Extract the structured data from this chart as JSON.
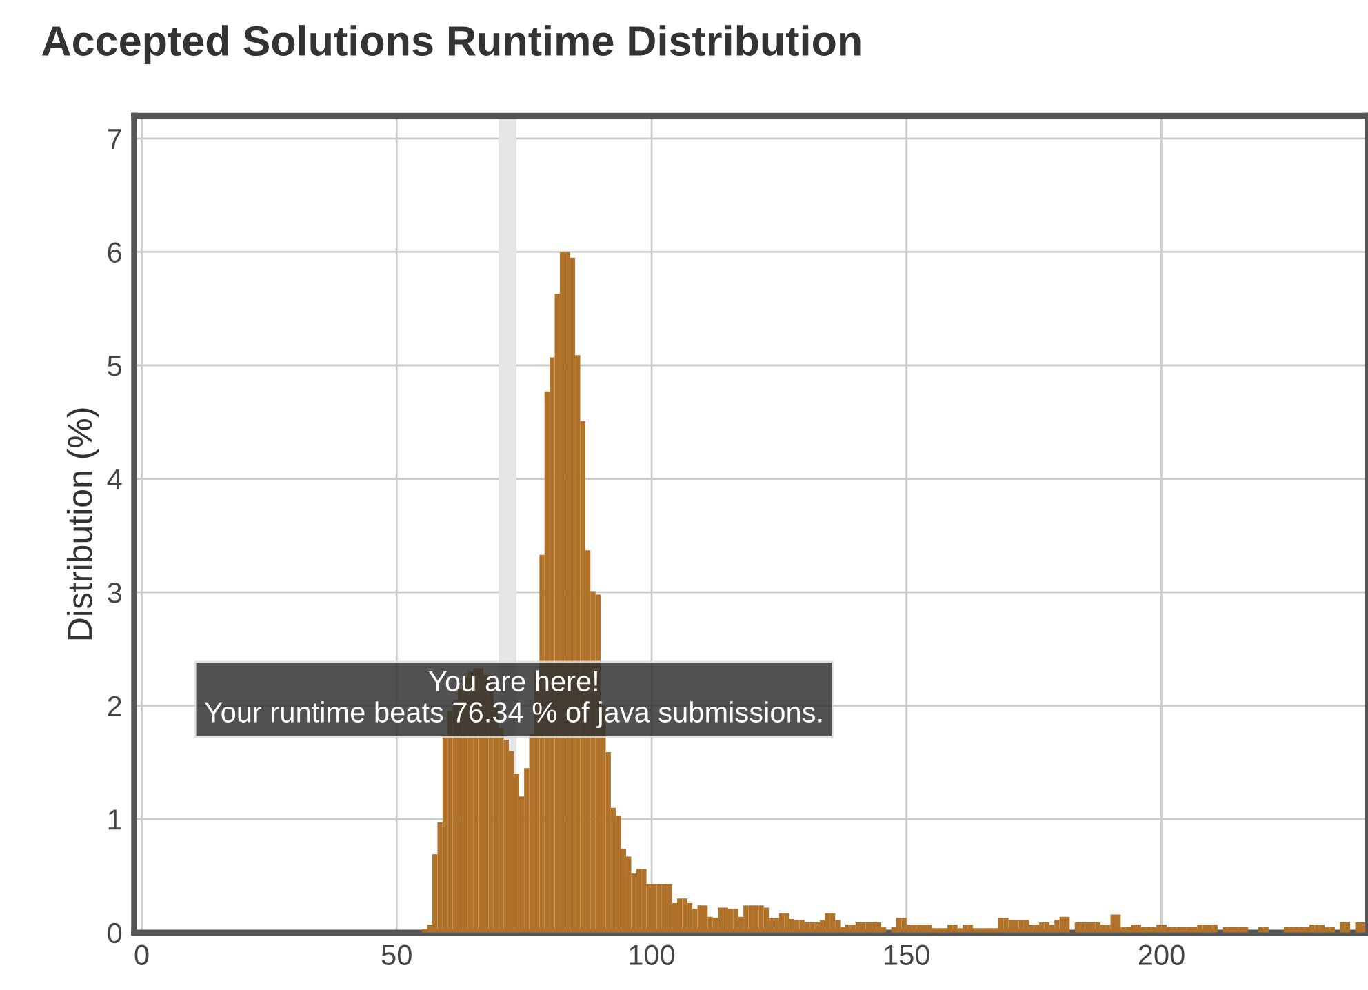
{
  "chart_data": {
    "type": "histogram",
    "title": "Accepted Solutions Runtime Distribution",
    "ylabel": "Distribution (%)",
    "color": "#b07228",
    "bins": [
      55,
      56,
      57,
      58,
      59,
      60,
      61,
      62,
      63,
      64,
      65,
      66,
      67,
      68,
      69,
      70,
      71,
      72,
      73,
      74,
      75,
      76,
      77,
      78,
      79,
      80,
      81,
      82,
      83,
      84,
      85,
      86,
      87,
      88,
      89,
      90,
      91,
      92,
      93,
      94,
      95,
      96,
      97,
      98,
      99,
      100,
      101,
      102,
      103,
      104,
      105,
      106,
      107,
      108,
      109,
      110,
      111,
      112,
      113,
      114,
      115,
      116,
      117,
      118,
      119,
      120,
      121,
      122,
      123,
      124,
      125,
      126,
      127,
      128,
      129,
      130,
      131,
      132,
      133,
      134,
      135,
      136,
      137,
      138,
      139,
      140,
      141,
      142,
      143,
      144,
      145,
      146,
      147,
      148,
      149,
      150,
      151,
      152,
      153,
      154,
      155,
      156,
      157,
      158,
      159,
      160,
      161,
      162,
      163,
      164,
      165,
      166,
      167,
      168,
      169,
      170,
      171,
      172,
      173,
      174,
      175,
      176,
      177,
      178,
      179,
      180,
      181,
      182,
      183,
      184,
      185,
      186,
      187,
      188,
      189,
      190,
      191,
      192,
      193,
      194,
      195,
      196,
      197,
      198,
      199,
      200,
      201,
      202,
      203,
      204,
      205,
      206,
      207,
      208,
      209,
      210,
      211,
      212,
      213,
      214,
      215,
      216,
      217,
      219,
      220,
      221,
      224,
      225,
      226,
      227,
      228,
      229,
      230,
      231,
      232,
      233,
      234,
      235,
      236,
      237,
      238,
      239,
      240
    ],
    "values": [
      0.03,
      0.07,
      0.69,
      0.97,
      1.74,
      1.95,
      2.05,
      2.15,
      2.25,
      2.3,
      2.33,
      2.33,
      2.27,
      2.27,
      2.0,
      1.8,
      1.7,
      1.6,
      1.4,
      1.2,
      1.45,
      1.75,
      2.3,
      3.33,
      4.77,
      5.07,
      5.63,
      6.0,
      6.0,
      5.95,
      5.09,
      4.51,
      3.37,
      3.01,
      2.98,
      2.0,
      1.59,
      1.1,
      1.03,
      0.74,
      0.67,
      0.52,
      0.56,
      0.56,
      0.43,
      0.43,
      0.43,
      0.43,
      0.43,
      0.26,
      0.3,
      0.3,
      0.26,
      0.21,
      0.24,
      0.24,
      0.14,
      0.13,
      0.22,
      0.22,
      0.21,
      0.21,
      0.14,
      0.24,
      0.24,
      0.24,
      0.24,
      0.22,
      0.13,
      0.13,
      0.17,
      0.17,
      0.12,
      0.11,
      0.11,
      0.09,
      0.09,
      0.09,
      0.11,
      0.17,
      0.17,
      0.11,
      0.05,
      0.07,
      0.07,
      0.09,
      0.09,
      0.09,
      0.09,
      0.09,
      0.05,
      0,
      0.05,
      0.13,
      0.13,
      0.07,
      0.07,
      0.07,
      0.07,
      0.07,
      0.04,
      0.04,
      0.04,
      0.07,
      0.07,
      0.04,
      0.07,
      0.07,
      0.04,
      0.04,
      0.04,
      0.04,
      0.04,
      0.13,
      0.13,
      0.11,
      0.11,
      0.11,
      0.11,
      0.07,
      0.07,
      0.09,
      0.09,
      0.07,
      0.11,
      0.14,
      0.14,
      0,
      0.09,
      0.09,
      0.09,
      0.09,
      0.09,
      0.07,
      0.07,
      0.16,
      0.16,
      0.05,
      0.05,
      0.07,
      0.07,
      0.05,
      0.05,
      0.05,
      0.07,
      0.07,
      0.05,
      0.05,
      0.05,
      0.05,
      0.05,
      0.05,
      0.07,
      0.07,
      0.07,
      0.07,
      0,
      0.05,
      0.05,
      0.05,
      0.05,
      0.05,
      0,
      0.05,
      0.05,
      0,
      0.05,
      0.05,
      0.05,
      0.05,
      0.05,
      0.07,
      0.07,
      0.07,
      0.05,
      0.05,
      0,
      0.09,
      0.09,
      0,
      0.09,
      0.09
    ],
    "xlim": [
      -1.5,
      240.5
    ],
    "xticks": [
      0,
      50,
      100,
      150,
      200
    ],
    "ylim": [
      0,
      7.2
    ],
    "yticks": [
      0,
      1,
      2,
      3,
      4,
      5,
      6,
      7
    ],
    "grid": true,
    "bands": [
      {
        "axis": "x",
        "from": 70,
        "to": 73.5,
        "color": "#e6e6e6"
      }
    ],
    "annotations": [
      {
        "text": "You are here!\nYour runtime beats 76.34 % of java submissions.",
        "x": 73,
        "y": 1.6
      }
    ]
  }
}
